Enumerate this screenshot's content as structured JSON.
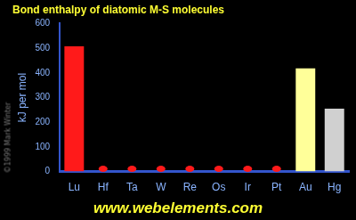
{
  "chart_data": {
    "type": "bar",
    "title": "Bond enthalpy of diatomic M-S molecules",
    "y_label": "kJ per mol",
    "categories": [
      "Lu",
      "Hf",
      "Ta",
      "W",
      "Re",
      "Os",
      "Ir",
      "Pt",
      "Au",
      "Hg"
    ],
    "values": [
      508,
      null,
      null,
      null,
      null,
      null,
      null,
      null,
      418,
      255
    ],
    "colors": [
      "#ff1a1a",
      "#ff1a1a",
      "#ff1a1a",
      "#ff1a1a",
      "#ff1a1a",
      "#ff1a1a",
      "#ff1a1a",
      "#ff1a1a",
      "#ffff99",
      "#d0d0d0"
    ],
    "ylim": [
      0,
      600
    ],
    "yticks": [
      0,
      100,
      200,
      300,
      400,
      500,
      600
    ],
    "grid": false,
    "annotations": [
      "www.webelements.com",
      "©1999 Mark Winter"
    ]
  }
}
